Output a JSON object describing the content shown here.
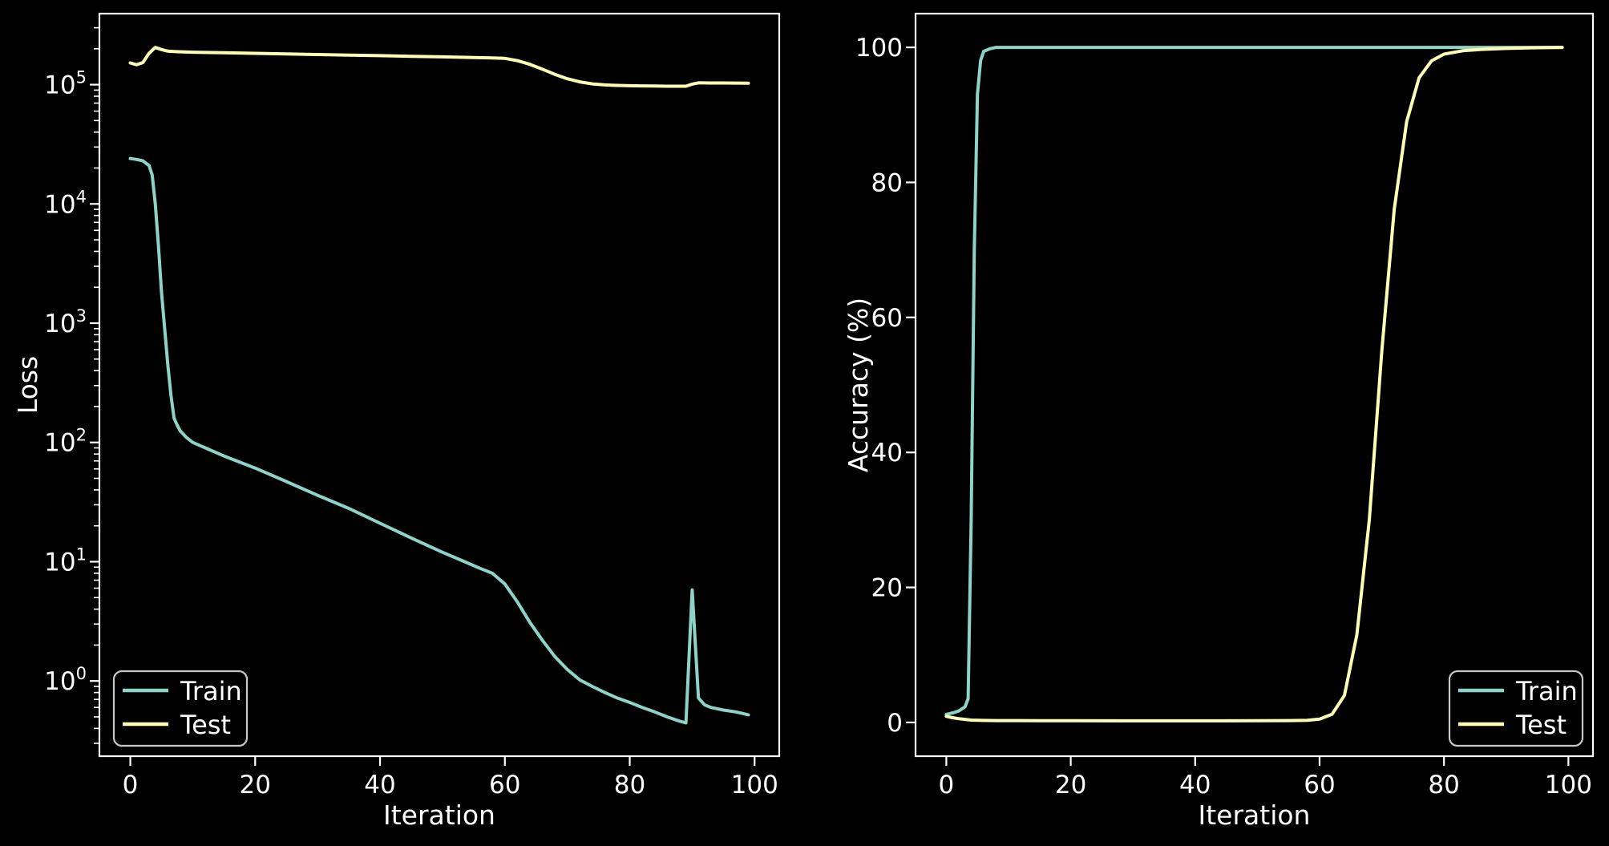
{
  "figure": {
    "background": "#000000",
    "foreground": "#ffffff",
    "legend_border": "#c8c8c8",
    "train_color": "#8dd3c7",
    "test_color": "#ffffb3"
  },
  "chart_data": [
    {
      "id": "loss",
      "type": "line",
      "title": "",
      "xlabel": "Iteration",
      "ylabel": "Loss",
      "xscale": "linear",
      "yscale": "log",
      "xlim": [
        -4.95,
        103.95
      ],
      "ylim": [
        0.234,
        394000
      ],
      "xticks": [
        0,
        20,
        40,
        60,
        80,
        100
      ],
      "ytick_exponents": [
        0,
        1,
        2,
        3,
        4,
        5
      ],
      "grid": false,
      "legend": {
        "position": "lower-left",
        "labels": [
          "Train",
          "Test"
        ]
      },
      "series": [
        {
          "name": "Train",
          "color": "#8dd3c7",
          "x": [
            0,
            1,
            2,
            3,
            3.5,
            4,
            4.5,
            5,
            5.5,
            6,
            6.5,
            7,
            7.5,
            8,
            9,
            10,
            12,
            15,
            20,
            25,
            30,
            35,
            40,
            45,
            50,
            53,
            56,
            58,
            60,
            62,
            64,
            66,
            68,
            70,
            72,
            74,
            76,
            78,
            80,
            82,
            84,
            86,
            88,
            89,
            90,
            91,
            92,
            93,
            94,
            95,
            96,
            97,
            98,
            99
          ],
          "y": [
            24000,
            23600,
            23000,
            21000,
            17500,
            10000,
            4500,
            1800,
            900,
            450,
            250,
            160,
            140,
            125,
            110,
            100,
            90,
            77,
            61,
            47,
            36,
            28,
            21,
            15.8,
            12,
            10.3,
            8.8,
            8.0,
            6.5,
            4.6,
            3.1,
            2.2,
            1.6,
            1.25,
            1.02,
            0.9,
            0.8,
            0.72,
            0.66,
            0.6,
            0.55,
            0.5,
            0.46,
            0.445,
            5.8,
            0.72,
            0.63,
            0.6,
            0.585,
            0.57,
            0.56,
            0.55,
            0.535,
            0.52
          ]
        },
        {
          "name": "Test",
          "color": "#ffffb3",
          "x": [
            0,
            1,
            2,
            3,
            4,
            5,
            6,
            7,
            8,
            10,
            15,
            20,
            25,
            30,
            35,
            40,
            45,
            50,
            55,
            58,
            60,
            62,
            64,
            66,
            68,
            70,
            72,
            74,
            76,
            78,
            80,
            82,
            84,
            86,
            88,
            89,
            90,
            91,
            93,
            95,
            97,
            99
          ],
          "y": [
            152000,
            147000,
            153000,
            183000,
            205000,
            197000,
            191000,
            189500,
            188500,
            187000,
            185000,
            183000,
            181000,
            179000,
            177000,
            175000,
            173000,
            171000,
            169000,
            167500,
            166000,
            159000,
            148000,
            135000,
            122000,
            112000,
            105500,
            101500,
            99500,
            98500,
            98000,
            97600,
            97300,
            97100,
            97000,
            97000,
            101000,
            103500,
            103300,
            103200,
            103100,
            103000
          ]
        }
      ]
    },
    {
      "id": "accuracy",
      "type": "line",
      "title": "",
      "xlabel": "Iteration",
      "ylabel": "Accuracy (%)",
      "xscale": "linear",
      "yscale": "linear",
      "xlim": [
        -4.95,
        103.95
      ],
      "ylim": [
        -5,
        105
      ],
      "xticks": [
        0,
        20,
        40,
        60,
        80,
        100
      ],
      "yticks": [
        0,
        20,
        40,
        60,
        80,
        100
      ],
      "grid": false,
      "legend": {
        "position": "lower-right",
        "labels": [
          "Train",
          "Test"
        ]
      },
      "series": [
        {
          "name": "Train",
          "color": "#8dd3c7",
          "x": [
            0,
            1,
            2,
            3,
            3.5,
            4,
            4.5,
            5,
            5.5,
            6,
            7,
            8,
            10,
            15,
            20,
            30,
            40,
            50,
            60,
            70,
            80,
            90,
            99
          ],
          "y": [
            1.2,
            1.4,
            1.7,
            2.3,
            3.5,
            30,
            70,
            93,
            98,
            99.4,
            99.8,
            100,
            100,
            100,
            100,
            100,
            100,
            100,
            100,
            100,
            100,
            100,
            100
          ]
        },
        {
          "name": "Test",
          "color": "#ffffb3",
          "x": [
            0,
            1,
            2,
            3,
            4,
            6,
            8,
            10,
            15,
            20,
            30,
            40,
            50,
            55,
            58,
            60,
            62,
            64,
            66,
            68,
            70,
            72,
            74,
            76,
            78,
            80,
            83,
            86,
            90,
            95,
            99
          ],
          "y": [
            0.9,
            0.7,
            0.55,
            0.45,
            0.35,
            0.3,
            0.28,
            0.27,
            0.26,
            0.25,
            0.24,
            0.24,
            0.25,
            0.27,
            0.32,
            0.5,
            1.2,
            4,
            13,
            30,
            55,
            76,
            89,
            95.5,
            98,
            99,
            99.5,
            99.7,
            99.85,
            99.95,
            100
          ]
        }
      ]
    }
  ]
}
